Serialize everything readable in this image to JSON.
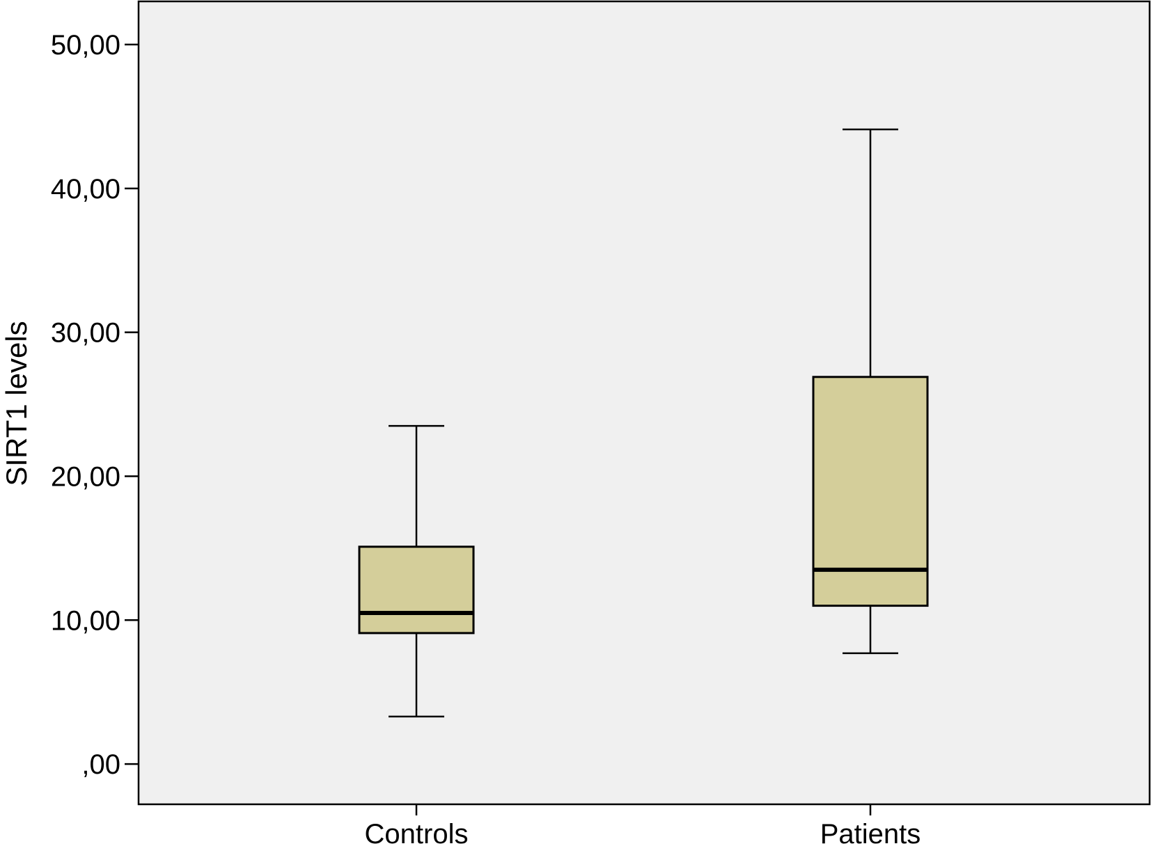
{
  "chart_data": {
    "type": "boxplot",
    "ylabel": "SIRT1 levels",
    "ylim": [
      -2.8,
      53
    ],
    "yticks": [
      0,
      10,
      20,
      30,
      40,
      50
    ],
    "ytick_labels": [
      ",00",
      "10,00",
      "20,00",
      "30,00",
      "40,00",
      "50,00"
    ],
    "categories": [
      "Controls",
      "Patients"
    ],
    "boxes": [
      {
        "category": "Controls",
        "whisker_low": 3.3,
        "q1": 9.1,
        "median": 10.5,
        "q3": 15.1,
        "whisker_high": 23.5
      },
      {
        "category": "Patients",
        "whisker_low": 7.7,
        "q1": 11.0,
        "median": 13.5,
        "q3": 26.9,
        "whisker_high": 44.1
      }
    ],
    "grid": false,
    "colors": {
      "box_fill": "#d4ce9a",
      "plot_background": "#f0f0f0",
      "stroke": "#000000"
    }
  }
}
